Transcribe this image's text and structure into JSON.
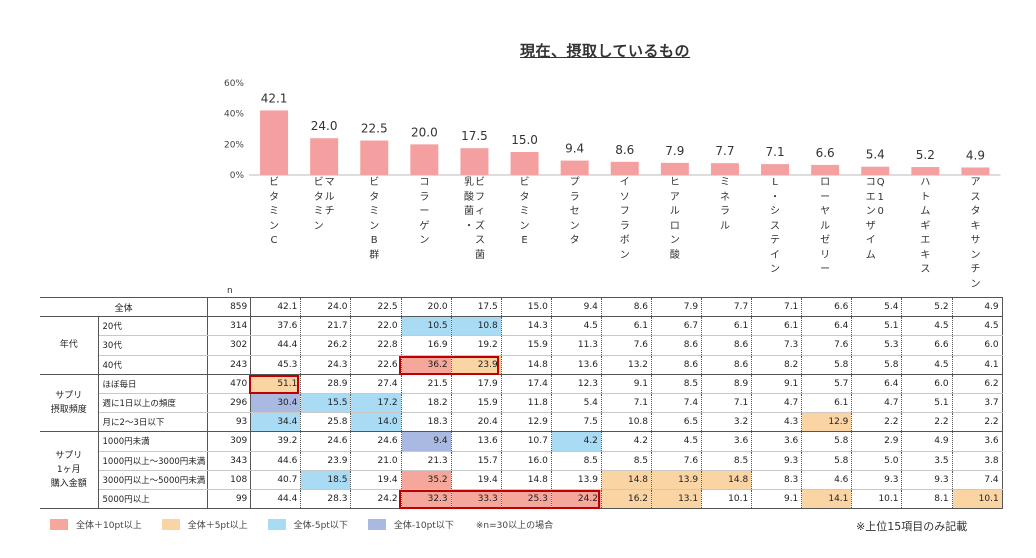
{
  "title": "現在、摂取しているもの",
  "n_label": "n",
  "chart_data": {
    "type": "bar",
    "categories": [
      "ビタミンC",
      "マルチビタミン",
      "ビタミンB群",
      "コラーゲン",
      "ビフィズス菌・乳酸菌",
      "ビタミンE",
      "プラセンタ",
      "イソフラボン",
      "ヒアルロン酸",
      "ミネラル",
      "L-システイン",
      "ローヤルゼリー",
      "コエンザイムQ10",
      "ハトムギエキス",
      "アスタキサンチン"
    ],
    "category_columns": [
      [
        "ビタミンC"
      ],
      [
        "マルチ",
        "ビタミン"
      ],
      [
        "ビタミンB群"
      ],
      [
        "コラーゲン"
      ],
      [
        "ビフィズス菌",
        "乳酸菌・"
      ],
      [
        "ビタミンE"
      ],
      [
        "プラセンタ"
      ],
      [
        "イソフラボン"
      ],
      [
        "ヒアルロン酸"
      ],
      [
        "ミネラル"
      ],
      [
        "L・システイン"
      ],
      [
        "ローヤルゼリー"
      ],
      [
        "Q10",
        "コエンザイム"
      ],
      [
        "ハトムギエキス"
      ],
      [
        "アスタキサンチン"
      ]
    ],
    "values": [
      42.1,
      24.0,
      22.5,
      20.0,
      17.5,
      15.0,
      9.4,
      8.6,
      7.9,
      7.7,
      7.1,
      6.6,
      5.4,
      5.2,
      4.9
    ],
    "value_labels": [
      "42.1",
      "24.0",
      "22.5",
      "20.0",
      "17.5",
      "15.0",
      "9.4",
      "8.6",
      "7.9",
      "7.7",
      "7.1",
      "6.6",
      "5.4",
      "5.2",
      "4.9"
    ],
    "ylim": [
      0,
      60
    ],
    "yticks": [
      "0%",
      "20%",
      "40%",
      "60%"
    ],
    "ytick_values": [
      0,
      20,
      40,
      60
    ],
    "bar_color": "#f4a0a0",
    "grid": false
  },
  "table": {
    "rows": [
      {
        "group": "全体",
        "sub": "",
        "n": "859",
        "values": [
          "42.1",
          "24.0",
          "22.5",
          "20.0",
          "17.5",
          "15.0",
          "9.4",
          "8.6",
          "7.9",
          "7.7",
          "7.1",
          "6.6",
          "5.4",
          "5.2",
          "4.9"
        ],
        "marks": [
          "",
          "",
          "",
          "",
          "",
          "",
          "",
          "",
          "",
          "",
          "",
          "",
          "",
          "",
          ""
        ]
      },
      {
        "group": "年代",
        "sub": "20代",
        "n": "314",
        "values": [
          "37.6",
          "21.7",
          "22.0",
          "10.5",
          "10.8",
          "14.3",
          "4.5",
          "6.1",
          "6.7",
          "6.1",
          "6.1",
          "6.4",
          "5.1",
          "4.5",
          "4.5"
        ],
        "marks": [
          "",
          "",
          "",
          "m5",
          "m5",
          "",
          "",
          "",
          "",
          "",
          "",
          "",
          "",
          "",
          ""
        ]
      },
      {
        "group": "",
        "sub": "30代",
        "n": "302",
        "values": [
          "44.4",
          "26.2",
          "22.8",
          "16.9",
          "19.2",
          "15.9",
          "11.3",
          "7.6",
          "8.6",
          "8.6",
          "7.3",
          "7.6",
          "5.3",
          "6.6",
          "6.0"
        ],
        "marks": [
          "",
          "",
          "",
          "",
          "",
          "",
          "",
          "",
          "",
          "",
          "",
          "",
          "",
          "",
          ""
        ]
      },
      {
        "group": "",
        "sub": "40代",
        "n": "243",
        "values": [
          "45.3",
          "24.3",
          "22.6",
          "36.2",
          "23.9",
          "14.8",
          "13.6",
          "13.2",
          "8.6",
          "8.6",
          "8.2",
          "5.8",
          "5.8",
          "4.5",
          "4.1"
        ],
        "marks": [
          "",
          "",
          "",
          "p10",
          "p5",
          "",
          "",
          "",
          "",
          "",
          "",
          "",
          "",
          "",
          ""
        ]
      },
      {
        "group": "サプリ\n摂取頻度",
        "sub": "ほぼ毎日",
        "n": "470",
        "values": [
          "51.1",
          "28.9",
          "27.4",
          "21.5",
          "17.9",
          "17.4",
          "12.3",
          "9.1",
          "8.5",
          "8.9",
          "9.1",
          "5.7",
          "6.4",
          "6.0",
          "6.2"
        ],
        "marks": [
          "p5",
          "",
          "",
          "",
          "",
          "",
          "",
          "",
          "",
          "",
          "",
          "",
          "",
          "",
          ""
        ]
      },
      {
        "group": "",
        "sub": "週に1日以上の頻度",
        "n": "296",
        "values": [
          "30.4",
          "15.5",
          "17.2",
          "18.2",
          "15.9",
          "11.8",
          "5.4",
          "7.1",
          "7.4",
          "7.1",
          "4.7",
          "6.1",
          "4.7",
          "5.1",
          "3.7"
        ],
        "marks": [
          "m10",
          "m5",
          "m5",
          "",
          "",
          "",
          "",
          "",
          "",
          "",
          "",
          "",
          "",
          "",
          ""
        ]
      },
      {
        "group": "",
        "sub": "月に2～3日以下",
        "n": "93",
        "values": [
          "34.4",
          "25.8",
          "14.0",
          "18.3",
          "20.4",
          "12.9",
          "7.5",
          "10.8",
          "6.5",
          "3.2",
          "4.3",
          "12.9",
          "2.2",
          "2.2",
          "2.2"
        ],
        "marks": [
          "m5",
          "",
          "m5",
          "",
          "",
          "",
          "",
          "",
          "",
          "",
          "",
          "p5",
          "",
          "",
          ""
        ]
      },
      {
        "group": "サプリ\n1ヶ月\n購入金額",
        "sub": "1000円未満",
        "n": "309",
        "values": [
          "39.2",
          "24.6",
          "24.6",
          "9.4",
          "13.6",
          "10.7",
          "4.2",
          "4.2",
          "4.5",
          "3.6",
          "3.6",
          "5.8",
          "2.9",
          "4.9",
          "3.6"
        ],
        "marks": [
          "",
          "",
          "",
          "m10",
          "",
          "",
          "m5",
          "",
          "",
          "",
          "",
          "",
          "",
          "",
          ""
        ]
      },
      {
        "group": "",
        "sub": "1000円以上～3000円未満",
        "n": "343",
        "values": [
          "44.6",
          "23.9",
          "21.0",
          "21.3",
          "15.7",
          "16.0",
          "8.5",
          "8.5",
          "7.6",
          "8.5",
          "9.3",
          "5.8",
          "5.0",
          "3.5",
          "3.8"
        ],
        "marks": [
          "",
          "",
          "",
          "",
          "",
          "",
          "",
          "",
          "",
          "",
          "",
          "",
          "",
          "",
          ""
        ]
      },
      {
        "group": "",
        "sub": "3000円以上～5000円未満",
        "n": "108",
        "values": [
          "40.7",
          "18.5",
          "19.4",
          "35.2",
          "19.4",
          "14.8",
          "13.9",
          "14.8",
          "13.9",
          "14.8",
          "8.3",
          "4.6",
          "9.3",
          "9.3",
          "7.4"
        ],
        "marks": [
          "",
          "m5",
          "",
          "p10",
          "",
          "",
          "",
          "p5",
          "p5",
          "p5",
          "",
          "",
          "",
          "",
          ""
        ]
      },
      {
        "group": "",
        "sub": "5000円以上",
        "n": "99",
        "values": [
          "44.4",
          "28.3",
          "24.2",
          "32.3",
          "33.3",
          "25.3",
          "24.2",
          "16.2",
          "13.1",
          "10.1",
          "9.1",
          "14.1",
          "10.1",
          "8.1",
          "10.1"
        ],
        "marks": [
          "",
          "",
          "",
          "p10",
          "p10",
          "p10",
          "p10",
          "p5",
          "p5",
          "",
          "",
          "p5",
          "",
          "",
          "p5"
        ]
      }
    ]
  },
  "colors": {
    "p10": "#f4a79a",
    "p5": "#fbd4a4",
    "m5": "#a9dbf4",
    "m10": "#a9b9e1",
    "highlight": "#c00000"
  },
  "legend": [
    {
      "key": "p10",
      "label": "全体＋10pt以上"
    },
    {
      "key": "p5",
      "label": "全体＋5pt以上"
    },
    {
      "key": "m5",
      "label": "全体-5pt以下"
    },
    {
      "key": "m10",
      "label": "全体-10pt以下"
    }
  ],
  "legend_note": "※n=30以上の場合",
  "footnote": "※上位15項目のみ記載"
}
